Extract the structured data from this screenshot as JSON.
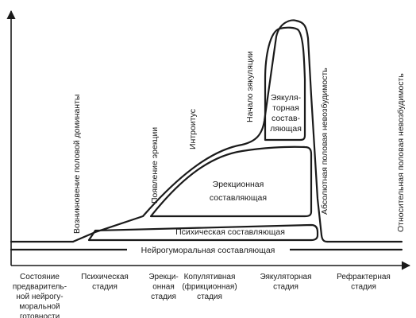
{
  "components": {
    "neurohumoral": "Нейрогуморальная составляющая",
    "psychic": "Психическая составляющая",
    "erection": [
      "Эрекционная",
      "составляющая"
    ],
    "ejaculatory": [
      "Эякуля-",
      "торная",
      "состав-",
      "ляющая"
    ]
  },
  "events": {
    "dominant": "Возникновение половой доминанты",
    "erection_onset": "Появление эрекции",
    "introitus": "Интроитус",
    "ejaculation_onset": "Начало эякуляции",
    "absolute_refractory": "Абсолютная половая невозбудимость",
    "relative_refractory": "Относительная половая невозбудимость"
  },
  "stages": [
    {
      "lines": [
        "Состояние",
        "предваритель-",
        "ной нейрогу-",
        "моральной",
        "готовности"
      ]
    },
    {
      "lines": [
        "Психическая",
        "стадия"
      ]
    },
    {
      "lines": [
        "Эрекци-",
        "онная",
        "стадия"
      ]
    },
    {
      "lines": [
        "Копулятивная",
        "(фрикционная)",
        "стадия"
      ]
    },
    {
      "lines": [
        "Эякуляторная",
        "стадия"
      ]
    },
    {
      "lines": [
        "Рефрактерная",
        "стадия"
      ]
    }
  ]
}
